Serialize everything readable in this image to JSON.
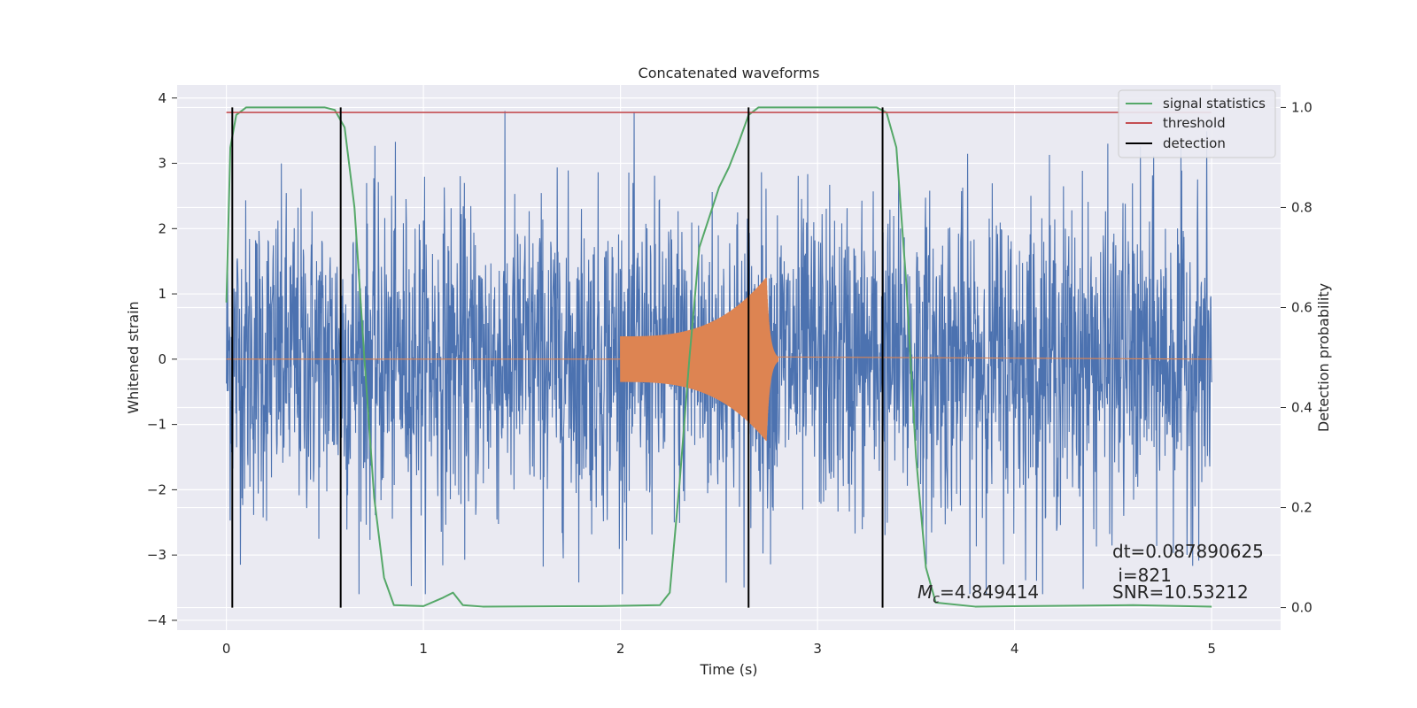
{
  "chart_data": {
    "type": "line",
    "title": "Concatenated waveforms",
    "xlabel": "Time (s)",
    "ylabel": "Whitened strain",
    "y2label": "Detection probability",
    "xlim": [
      -0.25,
      5.35
    ],
    "ylim": [
      -4.15,
      4.2
    ],
    "y2lim": [
      -0.045,
      1.045
    ],
    "xticks": [
      "0",
      "1",
      "2",
      "3",
      "4",
      "5"
    ],
    "yticks": [
      "4",
      "3",
      "2",
      "1",
      "0",
      "−1",
      "−2",
      "−3",
      "−4"
    ],
    "y2ticks": [
      "1.0",
      "0.8",
      "0.6",
      "0.4",
      "0.2",
      "0.0"
    ],
    "grid": true,
    "legend_position": "top-right",
    "colors": {
      "background": "#eaeaf2",
      "strain": "#4c72b0",
      "template": "#dd8452",
      "signal_statistics": "#55a868",
      "threshold": "#c44e52",
      "detection": "#000000"
    },
    "series": [
      {
        "name": "signal statistics",
        "axis": "right",
        "x": [
          0,
          0.02,
          0.05,
          0.1,
          0.5,
          0.55,
          0.6,
          0.65,
          0.7,
          0.75,
          0.8,
          0.85,
          1.0,
          1.1,
          1.15,
          1.2,
          1.3,
          1.9,
          2.2,
          2.25,
          2.3,
          2.35,
          2.4,
          2.5,
          2.55,
          2.6,
          2.65,
          2.7,
          2.8,
          3.3,
          3.35,
          3.4,
          3.45,
          3.5,
          3.55,
          3.6,
          3.8,
          4.6,
          5.0
        ],
        "values": [
          0.61,
          0.92,
          0.985,
          1.0,
          1.0,
          0.995,
          0.96,
          0.8,
          0.5,
          0.22,
          0.06,
          0.005,
          0.003,
          0.02,
          0.03,
          0.005,
          0.002,
          0.003,
          0.005,
          0.03,
          0.25,
          0.5,
          0.72,
          0.84,
          0.88,
          0.93,
          0.985,
          1.0,
          1.0,
          1.0,
          0.99,
          0.92,
          0.65,
          0.3,
          0.08,
          0.01,
          0.002,
          0.005,
          0.002
        ]
      },
      {
        "name": "threshold",
        "axis": "right",
        "x": [
          0,
          5
        ],
        "values": [
          0.99,
          0.99
        ]
      },
      {
        "name": "detection",
        "axis": "right",
        "x": [
          0.03,
          0.58,
          2.65,
          3.33
        ],
        "values": [
          1.0,
          1.0,
          1.0,
          1.0
        ],
        "ymin": 0
      },
      {
        "axis": "left",
        "noise_amplitude": 1.2,
        "x_range": [
          0,
          5
        ]
      },
      {
        "axis": "left",
        "x_range": [
          2.0,
          2.8
        ],
        "peak_time": 2.74,
        "peak_amplitude": 1.25
      }
    ],
    "legend": [
      "signal statistics",
      "threshold",
      "detection"
    ],
    "annotations": {
      "dt": "dt=0.087890625",
      "i": " i=821",
      "mc_symbol": "M",
      "mc_sub": "c",
      "mc_value": "=4.849414",
      "snr": "SNR=10.53212"
    }
  }
}
